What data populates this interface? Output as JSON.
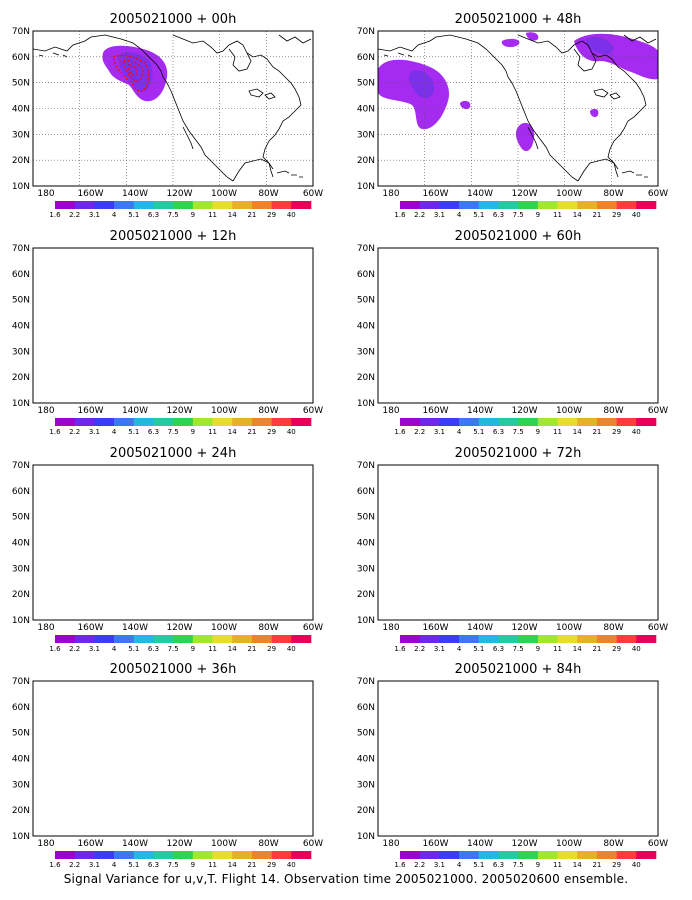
{
  "colorbar": {
    "labels": [
      "1.6",
      "2.2",
      "3.1",
      "4",
      "5.1",
      "6.3",
      "7.5",
      "9",
      "11",
      "14",
      "21",
      "29",
      "40"
    ],
    "colors": [
      "#a000c8",
      "#6e28e6",
      "#3c3cf0",
      "#3c78f0",
      "#28b4e6",
      "#28c8a0",
      "#32d250",
      "#a0e632",
      "#e6dc32",
      "#e6af2d",
      "#f08228",
      "#fa3c3c",
      "#e6005a"
    ]
  },
  "axes": {
    "x_labels": [
      "180",
      "160W",
      "140W",
      "120W",
      "100W",
      "80W",
      "60W"
    ],
    "y_labels": [
      "10N",
      "20N",
      "30N",
      "40N",
      "50N",
      "60N",
      "70N"
    ]
  },
  "colors": {
    "purple": "#a020f0",
    "violet": "#7a30e8",
    "blue": "#3c50f0",
    "contour_red": "#ff0000",
    "land_line": "#000000"
  },
  "panels": [
    {
      "id": "p00",
      "title": "2005021000 + 00h"
    },
    {
      "id": "p48",
      "title": "2005021000 + 48h"
    },
    {
      "id": "p12",
      "title": "2005021000 + 12h"
    },
    {
      "id": "p60",
      "title": "2005021000 + 60h"
    },
    {
      "id": "p24",
      "title": "2005021000 + 24h"
    },
    {
      "id": "p72",
      "title": "2005021000 + 72h"
    },
    {
      "id": "p36",
      "title": "2005021000 + 36h"
    },
    {
      "id": "p84",
      "title": "2005021000 + 84h"
    }
  ],
  "caption": "Signal Variance for u,v,T. Flight 14. Observation time 2005021000. 2005020600 ensemble."
}
